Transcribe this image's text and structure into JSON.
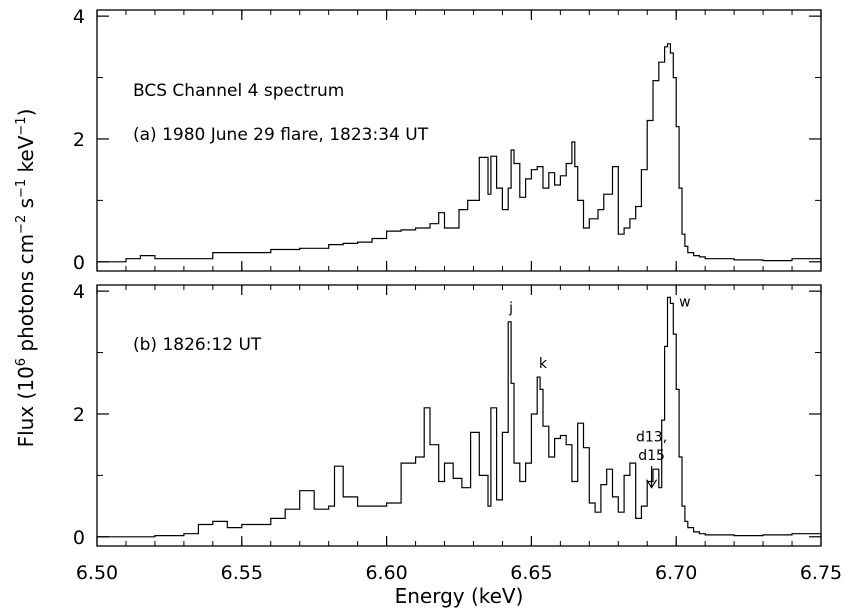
{
  "figure": {
    "ylabel_main": "Flux (10",
    "ylabel_sup1": "6",
    "ylabel_mid1": " photons cm",
    "ylabel_sup2": "−2",
    "ylabel_mid2": " s",
    "ylabel_sup3": "−1",
    "ylabel_mid3": " keV",
    "ylabel_sup4": "−1",
    "ylabel_end": ")",
    "xlabel": "Energy (keV)"
  },
  "chart_data": [
    {
      "type": "line",
      "step": true,
      "title": "BCS Channel 4 spectrum",
      "subtitle": "(a) 1980 June 29 flare, 1823:34 UT",
      "xlabel": "",
      "ylabel": "Flux (10^6 photons cm^-2 s^-1 keV^-1)",
      "xlim": [
        6.5,
        6.75
      ],
      "ylim": [
        -0.15,
        4.1
      ],
      "x_ticks": [
        "6.50",
        "6.55",
        "6.60",
        "6.65",
        "6.70",
        "6.75"
      ],
      "y_ticks": [
        "0",
        "2",
        "4"
      ],
      "y_tick_values": [
        0,
        2,
        4
      ],
      "series": [
        {
          "x": [
            6.5,
            6.51,
            6.515,
            6.52,
            6.53,
            6.54,
            6.55,
            6.56,
            6.57,
            6.58,
            6.585,
            6.59,
            6.595,
            6.6,
            6.605,
            6.61,
            6.615,
            6.618,
            6.62,
            6.625,
            6.628,
            6.632,
            6.635,
            6.636,
            6.638,
            6.64,
            6.642,
            6.643,
            6.644,
            6.646,
            6.648,
            6.65,
            6.652,
            6.654,
            6.656,
            6.658,
            6.66,
            6.662,
            6.664,
            6.665,
            6.666,
            6.668,
            6.67,
            6.673,
            6.675,
            6.678,
            6.68,
            6.682,
            6.684,
            6.686,
            6.688,
            6.69,
            6.692,
            6.694,
            6.696,
            6.697,
            6.698,
            6.699,
            6.7,
            6.701,
            6.702,
            6.703,
            6.704,
            6.706,
            6.708,
            6.71,
            6.72,
            6.73,
            6.74,
            6.75
          ],
          "y": [
            0.0,
            0.05,
            0.1,
            0.05,
            0.05,
            0.15,
            0.15,
            0.2,
            0.22,
            0.28,
            0.3,
            0.32,
            0.38,
            0.5,
            0.52,
            0.55,
            0.62,
            0.8,
            0.55,
            0.85,
            1.0,
            1.7,
            1.1,
            1.72,
            1.2,
            0.85,
            1.2,
            1.82,
            1.6,
            1.05,
            1.35,
            1.5,
            1.55,
            1.2,
            1.45,
            1.25,
            1.4,
            1.6,
            1.95,
            1.55,
            1.0,
            0.55,
            0.7,
            0.85,
            1.1,
            1.55,
            0.45,
            0.55,
            0.7,
            0.9,
            1.5,
            2.3,
            2.95,
            3.25,
            3.5,
            3.55,
            3.4,
            3.0,
            2.2,
            1.2,
            0.45,
            0.25,
            0.15,
            0.1,
            0.08,
            0.05,
            0.03,
            0.02,
            0.05,
            0.02
          ]
        }
      ],
      "annotations": []
    },
    {
      "type": "line",
      "step": true,
      "title": "",
      "subtitle": "(b) 1826:12 UT",
      "xlabel": "Energy (keV)",
      "ylabel": "Flux (10^6 photons cm^-2 s^-1 keV^-1)",
      "xlim": [
        6.5,
        6.75
      ],
      "ylim": [
        -0.15,
        4.1
      ],
      "x_ticks": [
        "6.50",
        "6.55",
        "6.60",
        "6.65",
        "6.70",
        "6.75"
      ],
      "y_ticks": [
        "0",
        "2",
        "4"
      ],
      "y_tick_values": [
        0,
        2,
        4
      ],
      "series": [
        {
          "x": [
            6.5,
            6.51,
            6.52,
            6.53,
            6.535,
            6.54,
            6.545,
            6.55,
            6.56,
            6.565,
            6.57,
            6.575,
            6.58,
            6.582,
            6.585,
            6.59,
            6.595,
            6.6,
            6.605,
            6.61,
            6.613,
            6.615,
            6.618,
            6.62,
            6.623,
            6.626,
            6.629,
            6.632,
            6.635,
            6.636,
            6.638,
            6.64,
            6.642,
            6.643,
            6.644,
            6.646,
            6.648,
            6.65,
            6.652,
            6.653,
            6.654,
            6.656,
            6.658,
            6.66,
            6.662,
            6.664,
            6.666,
            6.668,
            6.67,
            6.672,
            6.674,
            6.676,
            6.678,
            6.68,
            6.682,
            6.684,
            6.686,
            6.688,
            6.69,
            6.692,
            6.694,
            6.695,
            6.696,
            6.697,
            6.698,
            6.699,
            6.7,
            6.701,
            6.702,
            6.703,
            6.704,
            6.706,
            6.708,
            6.71,
            6.72,
            6.73,
            6.74,
            6.75
          ],
          "y": [
            0.0,
            0.0,
            0.02,
            0.05,
            0.2,
            0.25,
            0.15,
            0.2,
            0.3,
            0.45,
            0.75,
            0.45,
            0.5,
            1.15,
            0.65,
            0.5,
            0.5,
            0.55,
            1.2,
            1.3,
            2.1,
            1.5,
            0.9,
            1.2,
            0.95,
            0.8,
            1.7,
            1.0,
            0.5,
            2.1,
            0.6,
            1.7,
            3.5,
            2.5,
            1.2,
            0.9,
            1.2,
            2.0,
            2.6,
            2.4,
            1.8,
            1.3,
            1.6,
            1.65,
            1.5,
            0.9,
            1.85,
            1.45,
            0.55,
            0.4,
            0.85,
            1.1,
            0.65,
            0.4,
            1.0,
            1.2,
            0.3,
            0.5,
            0.9,
            1.1,
            0.8,
            1.9,
            3.1,
            3.9,
            3.8,
            3.3,
            2.4,
            1.3,
            0.5,
            0.25,
            0.15,
            0.08,
            0.05,
            0.03,
            0.02,
            0.03,
            0.05,
            0.02
          ]
        }
      ],
      "annotations": [
        {
          "text": "j",
          "x": 6.643,
          "y": 3.65
        },
        {
          "text": "k",
          "x": 6.654,
          "y": 2.75
        },
        {
          "text": "w",
          "x": 6.703,
          "y": 3.75
        },
        {
          "text": "d13,",
          "x": 6.6915,
          "y": 1.55
        },
        {
          "text": "d15",
          "x": 6.6915,
          "y": 1.25
        }
      ]
    }
  ]
}
